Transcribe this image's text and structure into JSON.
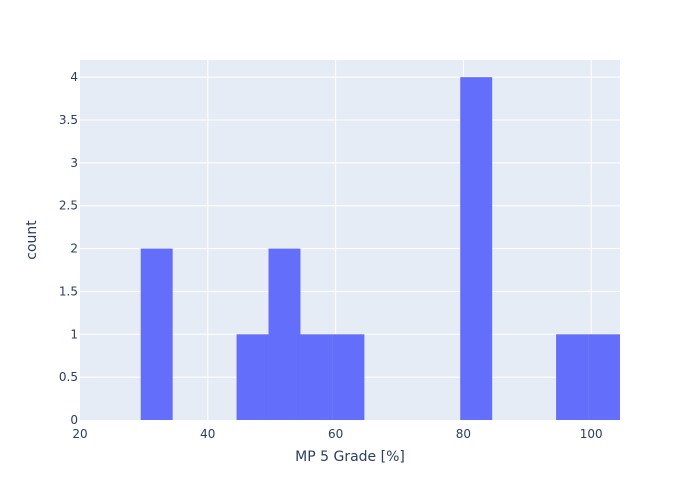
{
  "colors": {
    "plot_background": "#e5ecf6",
    "grid": "#ffffff",
    "bar": "#636efa",
    "text": "#2a3f5f"
  },
  "chart_data": {
    "type": "bar",
    "subtype": "histogram",
    "title": "",
    "xlabel": "MP 5 Grade [%]",
    "ylabel": "count",
    "xlim": [
      20,
      104.5
    ],
    "ylim": [
      0,
      4.2
    ],
    "grid": true,
    "x_ticks": [
      20,
      40,
      60,
      80,
      100
    ],
    "y_ticks": [
      0,
      0.5,
      1,
      1.5,
      2,
      2.5,
      3,
      3.5,
      4
    ],
    "y_tick_labels": [
      "0",
      "0.5",
      "1",
      "1.5",
      "2",
      "2.5",
      "3",
      "3.5",
      "4"
    ],
    "bins": [
      {
        "start": 29.5,
        "end": 34.5,
        "count": 2
      },
      {
        "start": 44.5,
        "end": 49.5,
        "count": 1
      },
      {
        "start": 49.5,
        "end": 54.5,
        "count": 2
      },
      {
        "start": 54.5,
        "end": 59.5,
        "count": 1
      },
      {
        "start": 59.5,
        "end": 64.5,
        "count": 1
      },
      {
        "start": 79.5,
        "end": 84.5,
        "count": 4
      },
      {
        "start": 94.5,
        "end": 99.5,
        "count": 1
      },
      {
        "start": 99.5,
        "end": 104.5,
        "count": 1
      }
    ]
  }
}
